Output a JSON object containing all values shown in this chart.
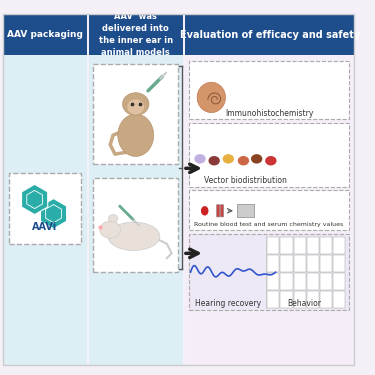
{
  "bg_color": "#f5f0f8",
  "left_col_color": "#ddeef5",
  "header_color": "#1e4d8c",
  "header_text_color": "#ffffff",
  "dashed_box_color": "#aaaaaa",
  "arrow_color": "#222222",
  "panel_bg_pink": "#f5eef8",
  "panel_bg_light": "#f0eef8",
  "col1_header": "AAV packaging",
  "col2_header": "AAV  was\ndelivered into\nthe inner ear in\nanimal models",
  "col3_header": "Evaluation of efficacy and safety",
  "aav_label": "AAVi",
  "box1_label": "Immunohistochemistry",
  "box2_label": "Vector biodistribution",
  "box3_label": "Routine blood test and serum chemistry values",
  "box4_label1": "Hearing recovery",
  "box4_label2": "Behavior",
  "fig_width": 3.75,
  "fig_height": 3.75,
  "dpi": 100
}
